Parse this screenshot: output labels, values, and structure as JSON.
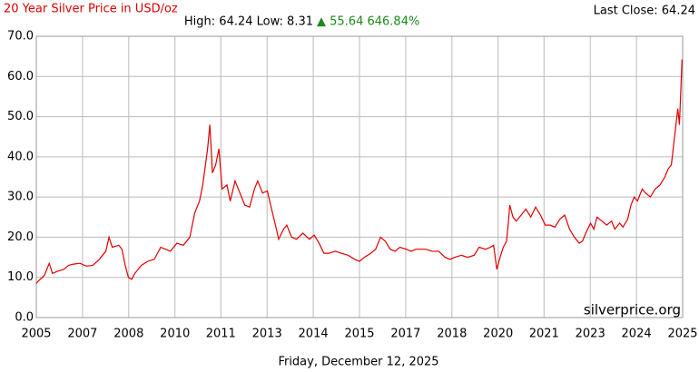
{
  "chart_data": {
    "type": "line",
    "title": "20 Year Silver Price in USD/oz",
    "last_close": "Last Close: 64.24",
    "range_text": "High: 64.24 Low: 8.31",
    "change_text": "▲ 55.64 646.84%",
    "watermark": "silverprice.org",
    "date": "Friday, December 12, 2025",
    "grid": true,
    "xlim": [
      2005.95,
      2025.95
    ],
    "ylim": [
      0,
      70
    ],
    "yticks": [
      {
        "value": 0,
        "label": "0.0"
      },
      {
        "value": 10,
        "label": "10.0"
      },
      {
        "value": 20,
        "label": "20.0"
      },
      {
        "value": 30,
        "label": "30.0"
      },
      {
        "value": 40,
        "label": "40.0"
      },
      {
        "value": 50,
        "label": "50.0"
      },
      {
        "value": 60,
        "label": "60.0"
      },
      {
        "value": 70,
        "label": "70.0"
      }
    ],
    "xticks": [
      {
        "value": 2005.95,
        "label": "2005"
      },
      {
        "value": 2007.38,
        "label": "2007"
      },
      {
        "value": 2008.81,
        "label": "2008"
      },
      {
        "value": 2010.24,
        "label": "2010"
      },
      {
        "value": 2011.66,
        "label": "2011"
      },
      {
        "value": 2013.09,
        "label": "2013"
      },
      {
        "value": 2014.52,
        "label": "2014"
      },
      {
        "value": 2015.95,
        "label": "2015"
      },
      {
        "value": 2017.38,
        "label": "2017"
      },
      {
        "value": 2018.81,
        "label": "2018"
      },
      {
        "value": 2020.24,
        "label": "2020"
      },
      {
        "value": 2021.66,
        "label": "2021"
      },
      {
        "value": 2023.09,
        "label": "2023"
      },
      {
        "value": 2024.52,
        "label": "2024"
      },
      {
        "value": 2025.95,
        "label": "2025"
      }
    ],
    "x": [
      2005.95,
      2006.0,
      2006.2,
      2006.35,
      2006.45,
      2006.6,
      2006.8,
      2006.95,
      2007.1,
      2007.3,
      2007.5,
      2007.7,
      2007.9,
      2008.1,
      2008.2,
      2008.3,
      2008.5,
      2008.6,
      2008.7,
      2008.8,
      2008.9,
      2009.0,
      2009.2,
      2009.4,
      2009.6,
      2009.8,
      2009.95,
      2010.1,
      2010.3,
      2010.5,
      2010.7,
      2010.85,
      2011.0,
      2011.1,
      2011.25,
      2011.32,
      2011.4,
      2011.5,
      2011.6,
      2011.7,
      2011.85,
      2011.95,
      2012.1,
      2012.2,
      2012.4,
      2012.55,
      2012.7,
      2012.8,
      2012.95,
      2013.1,
      2013.2,
      2013.35,
      2013.45,
      2013.6,
      2013.7,
      2013.85,
      2014.0,
      2014.2,
      2014.4,
      2014.55,
      2014.7,
      2014.85,
      2015.0,
      2015.2,
      2015.4,
      2015.6,
      2015.8,
      2015.95,
      2016.1,
      2016.3,
      2016.45,
      2016.6,
      2016.75,
      2016.9,
      2017.05,
      2017.2,
      2017.4,
      2017.55,
      2017.7,
      2017.85,
      2018.0,
      2018.2,
      2018.4,
      2018.6,
      2018.75,
      2018.9,
      2019.1,
      2019.3,
      2019.5,
      2019.65,
      2019.85,
      2020.0,
      2020.1,
      2020.2,
      2020.3,
      2020.4,
      2020.5,
      2020.55,
      2020.6,
      2020.7,
      2020.8,
      2020.95,
      2021.1,
      2021.25,
      2021.4,
      2021.55,
      2021.7,
      2021.85,
      2022.0,
      2022.15,
      2022.3,
      2022.45,
      2022.6,
      2022.75,
      2022.85,
      2022.95,
      2023.1,
      2023.2,
      2023.3,
      2023.45,
      2023.6,
      2023.75,
      2023.85,
      2024.0,
      2024.1,
      2024.25,
      2024.35,
      2024.45,
      2024.55,
      2024.7,
      2024.8,
      2024.95,
      2025.1,
      2025.25,
      2025.4,
      2025.5,
      2025.6,
      2025.7,
      2025.8,
      2025.85,
      2025.9,
      2025.93
    ],
    "series": [
      {
        "name": "Silver",
        "color": "#e00000",
        "values": [
          8.5,
          9.0,
          10.5,
          13.5,
          11.0,
          11.5,
          12.0,
          13.0,
          13.3,
          13.5,
          12.8,
          13.0,
          14.5,
          16.5,
          20.0,
          17.5,
          18.0,
          17.0,
          13.0,
          10.0,
          9.5,
          11.0,
          13.0,
          14.0,
          14.5,
          17.5,
          17.0,
          16.5,
          18.5,
          18.0,
          20.0,
          26.0,
          29.0,
          33.0,
          42.0,
          48.0,
          36.0,
          38.0,
          42.0,
          32.0,
          33.0,
          29.0,
          34.0,
          32.0,
          28.0,
          27.5,
          32.0,
          34.0,
          31.0,
          31.5,
          28.0,
          23.0,
          19.5,
          22.0,
          23.0,
          20.0,
          19.5,
          21.0,
          19.5,
          20.5,
          18.5,
          16.0,
          16.0,
          16.5,
          16.0,
          15.5,
          14.5,
          14.0,
          15.0,
          16.0,
          17.0,
          20.0,
          19.0,
          17.0,
          16.5,
          17.5,
          17.0,
          16.5,
          17.0,
          17.0,
          17.0,
          16.5,
          16.5,
          15.0,
          14.5,
          15.0,
          15.5,
          15.0,
          15.5,
          17.5,
          17.0,
          17.5,
          18.0,
          12.0,
          15.0,
          17.5,
          19.0,
          23.0,
          28.0,
          25.0,
          24.0,
          25.5,
          27.0,
          25.0,
          27.5,
          25.5,
          23.0,
          23.0,
          22.5,
          24.5,
          25.5,
          22.0,
          20.0,
          18.5,
          19.0,
          21.0,
          23.5,
          22.0,
          25.0,
          24.0,
          23.0,
          24.0,
          22.0,
          23.5,
          22.5,
          24.5,
          28.0,
          30.0,
          29.0,
          32.0,
          31.0,
          30.0,
          32.0,
          33.0,
          35.0,
          37.0,
          38.0,
          45.0,
          52.0,
          48.0,
          58.0,
          64.24
        ]
      }
    ]
  }
}
